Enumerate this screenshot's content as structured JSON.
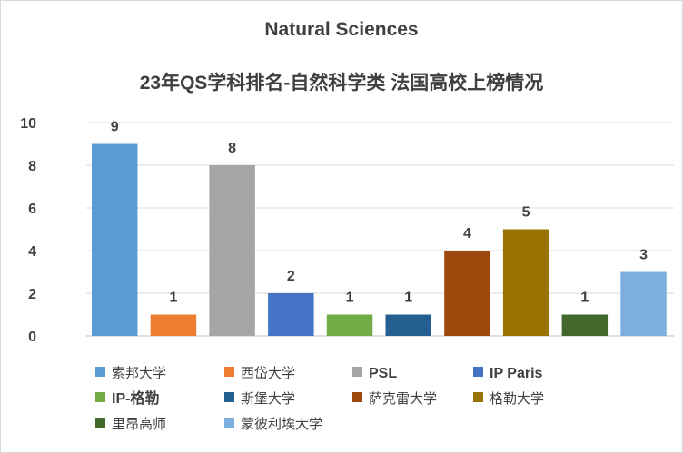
{
  "chart_data": {
    "type": "bar",
    "title": "Natural Sciences",
    "subtitle": "23年QS学科排名-自然科学类 法国高校上榜情况",
    "categories": [
      "索邦大学",
      "西岱大学",
      "PSL",
      "IP Paris",
      "IP-格勒",
      "斯堡大学",
      "萨克雷大学",
      "格勒大学",
      "里昂高师",
      "蒙彼利埃大学"
    ],
    "values": [
      9,
      1,
      8,
      2,
      1,
      1,
      4,
      5,
      1,
      3
    ],
    "colors": [
      "#5b9bd5",
      "#ed7d31",
      "#a5a5a5",
      "#4472c4",
      "#70ad47",
      "#255e91",
      "#9e480e",
      "#997300",
      "#43682b",
      "#7cafdd"
    ],
    "yticks": [
      0,
      2,
      4,
      6,
      8,
      10
    ],
    "ylim": [
      0,
      10
    ],
    "grid": true,
    "legend_position": "bottom"
  }
}
